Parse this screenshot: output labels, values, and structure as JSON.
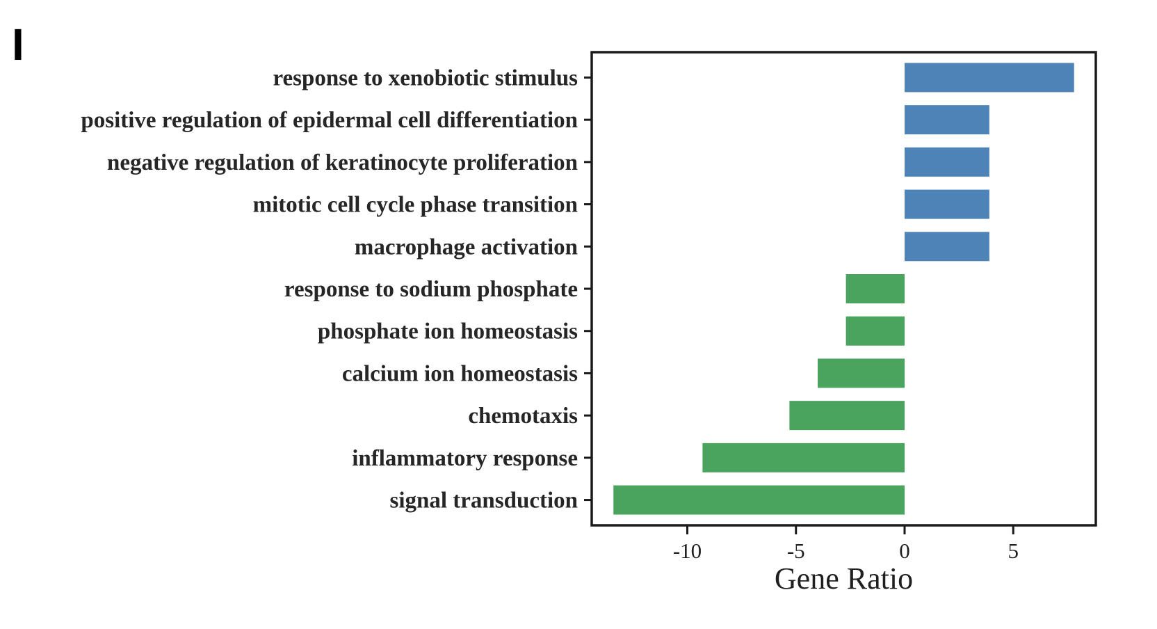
{
  "panel_label": "I",
  "chart_data": {
    "type": "bar",
    "orientation": "horizontal",
    "title": "",
    "xlabel": "Gene Ratio",
    "ylabel": "",
    "categories": [
      "response to xenobiotic stimulus",
      "positive regulation of epidermal cell differentiation",
      "negative regulation of keratinocyte proliferation",
      "mitotic cell cycle phase transition",
      "macrophage activation",
      "response to sodium phosphate",
      "phosphate ion homeostasis",
      "calcium ion homeostasis",
      "chemotaxis",
      "inflammatory response",
      "signal transduction"
    ],
    "values": [
      7.8,
      3.9,
      3.9,
      3.9,
      3.9,
      -2.7,
      -2.7,
      -4.0,
      -5.3,
      -9.3,
      -13.4
    ],
    "xticks": [
      -10,
      -5,
      0,
      5
    ],
    "xlim": [
      -14.4,
      8.8
    ],
    "grid": false,
    "legend": false,
    "bar_anchor": 0,
    "positive_color": "#4e83b7",
    "negative_color": "#4aa45e",
    "frame_color": "#1a1a1a",
    "category_text_color": "#262626",
    "tick_text_color": "#1f1f1f",
    "background_color": "#ffffff"
  }
}
